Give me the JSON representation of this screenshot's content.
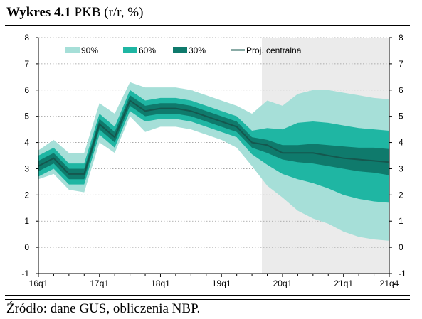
{
  "title": {
    "bold": "Wykres 4.1",
    "rest": " PKB (r/r, %)"
  },
  "source": "Źródło: dane GUS, obliczenia NBP.",
  "chart_data": {
    "type": "area",
    "y_ticks": [
      -1,
      0,
      1,
      2,
      3,
      4,
      5,
      6,
      7,
      8
    ],
    "ylim": [
      -1,
      8
    ],
    "x_tick_labels": [
      "16q1",
      "17q1",
      "18q1",
      "19q1",
      "20q1",
      "21q1",
      "21q4"
    ],
    "x_tick_indices": [
      0,
      4,
      8,
      12,
      16,
      20,
      23
    ],
    "x_count": 24,
    "forecast_shading_start": 14.65,
    "grid": "horizontal dotted",
    "legend_position": "top",
    "legend": [
      "90%",
      "60%",
      "30%",
      "Proj. centralna"
    ],
    "colors": {
      "band90": "#a6dfd8",
      "band60": "#1fb6a3",
      "band30": "#0f7a6c",
      "central": "#15574e",
      "shading": "#ebebeb"
    },
    "central": [
      3.1,
      3.4,
      2.8,
      2.8,
      4.7,
      4.2,
      5.6,
      5.2,
      5.3,
      5.3,
      5.2,
      5.0,
      4.8,
      4.6,
      4.0,
      3.9,
      3.6,
      3.6,
      3.6,
      3.5,
      3.4,
      3.35,
      3.3,
      3.25
    ],
    "band30": {
      "upper": [
        3.3,
        3.6,
        3.0,
        3.0,
        4.9,
        4.4,
        5.8,
        5.4,
        5.5,
        5.5,
        5.4,
        5.2,
        5.0,
        4.8,
        4.2,
        4.1,
        3.9,
        3.9,
        3.95,
        3.9,
        3.85,
        3.8,
        3.8,
        3.75
      ],
      "lower": [
        2.9,
        3.2,
        2.6,
        2.6,
        4.5,
        4.0,
        5.4,
        5.0,
        5.1,
        5.1,
        5.0,
        4.8,
        4.6,
        4.4,
        3.8,
        3.6,
        3.35,
        3.25,
        3.2,
        3.1,
        3.0,
        2.9,
        2.85,
        2.75
      ]
    },
    "band60": {
      "upper": [
        3.5,
        3.8,
        3.2,
        3.2,
        5.1,
        4.6,
        6.0,
        5.6,
        5.7,
        5.7,
        5.6,
        5.4,
        5.2,
        5.0,
        4.45,
        4.55,
        4.5,
        4.75,
        4.8,
        4.75,
        4.65,
        4.55,
        4.5,
        4.45
      ],
      "lower": [
        2.7,
        3.0,
        2.4,
        2.4,
        4.3,
        3.8,
        5.2,
        4.8,
        4.9,
        4.9,
        4.8,
        4.6,
        4.4,
        4.2,
        3.55,
        3.15,
        2.8,
        2.6,
        2.45,
        2.25,
        2.0,
        1.85,
        1.75,
        1.7
      ]
    },
    "band90": {
      "upper": [
        3.7,
        4.1,
        3.6,
        3.6,
        5.5,
        5.1,
        6.3,
        6.1,
        6.1,
        6.1,
        6.0,
        5.8,
        5.6,
        5.4,
        5.1,
        5.6,
        5.4,
        5.85,
        6.0,
        6.0,
        5.9,
        5.8,
        5.7,
        5.65
      ],
      "lower": [
        2.6,
        2.8,
        2.2,
        2.1,
        4.0,
        3.6,
        5.0,
        4.4,
        4.6,
        4.6,
        4.5,
        4.3,
        4.1,
        3.8,
        3.1,
        2.35,
        1.9,
        1.4,
        1.1,
        0.9,
        0.6,
        0.4,
        0.3,
        0.25
      ]
    }
  }
}
